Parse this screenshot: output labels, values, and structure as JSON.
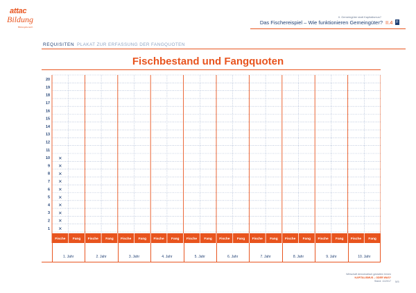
{
  "header": {
    "logo_line1": "attac",
    "logo_line2": "Bildung",
    "logo_line3": "Bildungsbereich",
    "kicker": "II. Gemeingüter statt Kapitalismus?",
    "title": "Das Fischereispiel – Wie funktionieren Gemeingüter?",
    "code": "II.4",
    "badge": "F"
  },
  "subheader": {
    "label": "REQUISITEN",
    "subtitle": "PLAKAT ZUR ERFASSUNG DER FANGQUOTEN"
  },
  "poster": {
    "title": "Fischbestand und Fangquoten",
    "row_numbers": [
      "20",
      "19",
      "18",
      "17",
      "16",
      "15",
      "14",
      "13",
      "12",
      "11",
      "10",
      "9",
      "8",
      "7",
      "6",
      "5",
      "4",
      "3",
      "2",
      "1"
    ],
    "initial_fish_marked_rows": 10,
    "fish_mark": "✕",
    "col_fische": "Fische",
    "col_fang": "Fang",
    "years": [
      "1. Jahr",
      "2. Jahr",
      "3. Jahr",
      "4. Jahr",
      "5. Jahr",
      "6. Jahr",
      "7. Jahr",
      "8. Jahr",
      "9. Jahr",
      "10. Jahr"
    ]
  },
  "colors": {
    "accent": "#e8541e",
    "text": "#1f3f73",
    "grid_dot": "#7f95bd"
  },
  "footer": {
    "line1": "Wirtschaft demokratisch gestalten lernen",
    "line2": "KAPITALISMUS – ODER WAS?",
    "line3": "Stand: 11/2017",
    "page": "5/5"
  }
}
